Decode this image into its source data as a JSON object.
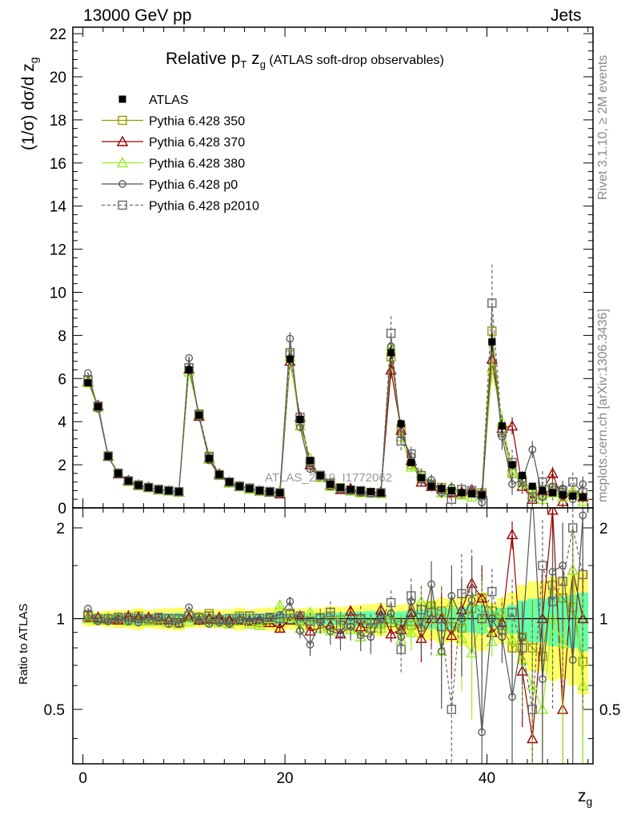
{
  "header": {
    "left": "13000 GeV pp",
    "right": "Jets"
  },
  "side_labels": {
    "rivet": "Rivet 3.1.10, ≥ 2M events",
    "mcplots": "mcplots.cern.ch [arXiv:1306.3436]"
  },
  "watermark": "ATLAS_2019_I1772062",
  "chart_data": [
    {
      "type": "scatter",
      "title": {
        "main": "Relative p",
        "sub": "T",
        "var": " z",
        "var_sub": "g",
        "suffix": " (ATLAS soft-drop observables)"
      },
      "ylabel": "(1/σ) dσ/d z",
      "ylabel_sub": "g",
      "ylim": [
        0,
        22.3
      ],
      "xlim": [
        -1,
        50.5
      ],
      "y_ticks": [
        "0",
        "2",
        "4",
        "6",
        "8",
        "10",
        "12",
        "14",
        "16",
        "18",
        "20",
        "22"
      ],
      "legend_position": "top-left",
      "x": [
        0.5,
        1.5,
        2.5,
        3.5,
        4.5,
        5.5,
        6.5,
        7.5,
        8.5,
        9.5,
        10.5,
        11.5,
        12.5,
        13.5,
        14.5,
        15.5,
        16.5,
        17.5,
        18.5,
        19.5,
        20.5,
        21.5,
        22.5,
        23.5,
        24.5,
        25.5,
        26.5,
        27.5,
        28.5,
        29.5,
        30.5,
        31.5,
        32.5,
        33.5,
        34.5,
        35.5,
        36.5,
        37.5,
        38.5,
        39.5,
        40.5,
        41.5,
        42.5,
        43.5,
        44.5,
        45.5,
        46.5,
        47.5,
        48.5,
        49.5
      ],
      "series": [
        {
          "name": "ATLAS",
          "color": "#000000",
          "marker": "filled-square",
          "values": [
            5.8,
            4.7,
            2.4,
            1.6,
            1.25,
            1.05,
            0.95,
            0.85,
            0.8,
            0.75,
            6.4,
            4.3,
            2.3,
            1.55,
            1.2,
            1.0,
            0.9,
            0.8,
            0.75,
            0.7,
            6.9,
            4.1,
            2.2,
            1.5,
            1.1,
            0.95,
            0.85,
            0.8,
            0.75,
            0.7,
            7.2,
            3.9,
            2.1,
            1.4,
            1.0,
            0.9,
            0.8,
            0.7,
            0.65,
            0.6,
            7.7,
            3.8,
            2.0,
            1.5,
            1.0,
            0.8,
            0.7,
            0.6,
            0.55,
            0.5
          ],
          "errors": [
            0.15,
            0.12,
            0.07,
            0.05,
            0.04,
            0.04,
            0.03,
            0.03,
            0.03,
            0.03,
            0.2,
            0.13,
            0.07,
            0.05,
            0.04,
            0.04,
            0.03,
            0.03,
            0.03,
            0.03,
            0.25,
            0.15,
            0.08,
            0.06,
            0.05,
            0.04,
            0.04,
            0.04,
            0.04,
            0.04,
            0.3,
            0.2,
            0.12,
            0.09,
            0.07,
            0.07,
            0.06,
            0.06,
            0.06,
            0.06,
            0.45,
            0.3,
            0.2,
            0.2,
            0.15,
            0.12,
            0.12,
            0.1,
            0.1,
            0.1
          ]
        },
        {
          "name": "Pythia 6.428 350",
          "color": "#999900",
          "marker": "open-square",
          "style": "solid",
          "values": [
            5.9,
            4.7,
            2.38,
            1.6,
            1.24,
            1.07,
            0.94,
            0.85,
            0.8,
            0.74,
            6.5,
            4.3,
            2.4,
            1.54,
            1.18,
            1.02,
            0.9,
            0.78,
            0.74,
            0.68,
            7.1,
            4.0,
            2.1,
            1.52,
            1.12,
            0.94,
            0.82,
            0.79,
            0.72,
            0.67,
            7.0,
            3.7,
            2.0,
            1.35,
            1.1,
            0.95,
            0.75,
            0.65,
            0.7,
            0.7,
            8.2,
            3.6,
            1.6,
            1.3,
            0.8,
            0.6,
            0.9,
            0.7,
            0.6,
            0.5
          ],
          "errors": [
            0.05,
            0.05,
            0.04,
            0.03,
            0.03,
            0.03,
            0.02,
            0.02,
            0.02,
            0.02,
            0.08,
            0.06,
            0.04,
            0.03,
            0.03,
            0.03,
            0.02,
            0.02,
            0.02,
            0.02,
            0.1,
            0.08,
            0.06,
            0.05,
            0.05,
            0.04,
            0.04,
            0.04,
            0.04,
            0.04,
            0.4,
            0.3,
            0.25,
            0.2,
            0.2,
            0.2,
            0.2,
            0.2,
            0.2,
            0.2,
            0.7,
            0.5,
            0.4,
            0.35,
            0.35,
            0.35,
            0.3,
            0.3,
            0.3,
            0.3
          ]
        },
        {
          "name": "Pythia 6.428 370",
          "color": "#990000",
          "marker": "open-triangle",
          "style": "solid",
          "values": [
            5.85,
            4.75,
            2.4,
            1.58,
            1.27,
            1.06,
            0.96,
            0.84,
            0.79,
            0.73,
            6.45,
            4.25,
            2.3,
            1.57,
            1.19,
            0.99,
            0.88,
            0.79,
            0.73,
            0.65,
            6.8,
            4.2,
            2.0,
            1.4,
            1.05,
            0.85,
            0.9,
            0.75,
            0.7,
            0.75,
            6.4,
            3.6,
            2.2,
            1.2,
            1.0,
            0.9,
            0.7,
            0.75,
            0.85,
            0.7,
            6.9,
            3.7,
            3.8,
            1.0,
            0.4,
            0.8,
            1.6,
            0.3,
            0.8,
            0.5
          ],
          "errors": [
            0.05,
            0.05,
            0.04,
            0.03,
            0.03,
            0.03,
            0.02,
            0.02,
            0.02,
            0.02,
            0.08,
            0.06,
            0.04,
            0.03,
            0.03,
            0.03,
            0.02,
            0.02,
            0.02,
            0.02,
            0.1,
            0.08,
            0.06,
            0.05,
            0.05,
            0.04,
            0.04,
            0.04,
            0.04,
            0.04,
            0.4,
            0.3,
            0.25,
            0.2,
            0.2,
            0.2,
            0.2,
            0.2,
            0.2,
            0.2,
            0.7,
            0.5,
            0.4,
            0.35,
            0.35,
            0.35,
            0.3,
            0.3,
            0.3,
            0.3
          ]
        },
        {
          "name": "Pythia 6.428 380",
          "color": "#99ee22",
          "marker": "open-triangle",
          "style": "solid",
          "values": [
            5.8,
            4.65,
            2.42,
            1.62,
            1.22,
            1.03,
            0.93,
            0.83,
            0.78,
            0.72,
            6.3,
            4.35,
            2.25,
            1.5,
            1.15,
            0.98,
            0.86,
            0.76,
            0.75,
            0.78,
            7.0,
            3.8,
            2.3,
            1.4,
            1.0,
            0.9,
            0.78,
            0.7,
            0.7,
            0.65,
            7.5,
            3.3,
            1.9,
            1.6,
            1.1,
            0.7,
            0.9,
            0.6,
            0.5,
            0.6,
            6.5,
            4.0,
            1.7,
            1.1,
            0.6,
            0.4,
            0.7,
            0.5,
            0.8,
            0.3
          ],
          "errors": [
            0.05,
            0.05,
            0.04,
            0.03,
            0.03,
            0.03,
            0.02,
            0.02,
            0.02,
            0.02,
            0.08,
            0.06,
            0.04,
            0.03,
            0.03,
            0.03,
            0.02,
            0.02,
            0.02,
            0.02,
            0.1,
            0.08,
            0.06,
            0.05,
            0.05,
            0.04,
            0.04,
            0.04,
            0.04,
            0.04,
            0.4,
            0.3,
            0.25,
            0.2,
            0.2,
            0.2,
            0.2,
            0.2,
            0.2,
            0.2,
            0.7,
            0.5,
            0.4,
            0.35,
            0.35,
            0.35,
            0.3,
            0.3,
            0.3,
            0.3
          ]
        },
        {
          "name": "Pythia 6.428 p0",
          "color": "#555555",
          "marker": "open-circle",
          "style": "solid",
          "values": [
            6.25,
            4.6,
            2.35,
            1.6,
            1.23,
            1.02,
            0.96,
            0.86,
            0.77,
            0.72,
            6.95,
            4.2,
            2.2,
            1.5,
            1.15,
            0.99,
            0.88,
            0.79,
            0.76,
            0.72,
            7.85,
            3.75,
            1.8,
            1.45,
            1.0,
            0.85,
            0.8,
            0.7,
            0.65,
            0.7,
            7.5,
            3.4,
            2.4,
            1.3,
            1.3,
            0.7,
            0.95,
            0.7,
            0.75,
            0.25,
            7.7,
            3.3,
            1.1,
            1.3,
            2.7,
            0.5,
            1.0,
            0.9,
            0.4,
            1.1
          ],
          "errors": [
            0.05,
            0.05,
            0.04,
            0.03,
            0.03,
            0.03,
            0.02,
            0.02,
            0.02,
            0.02,
            0.08,
            0.06,
            0.04,
            0.03,
            0.03,
            0.03,
            0.02,
            0.02,
            0.02,
            0.02,
            0.3,
            0.2,
            0.15,
            0.12,
            0.1,
            0.1,
            0.08,
            0.08,
            0.08,
            0.08,
            0.5,
            0.4,
            0.3,
            0.25,
            0.25,
            0.25,
            0.25,
            0.25,
            0.25,
            0.25,
            0.8,
            0.6,
            0.5,
            0.4,
            0.4,
            0.4,
            0.35,
            0.35,
            0.35,
            0.35
          ]
        },
        {
          "name": "Pythia 6.428 p2010",
          "color": "#666666",
          "marker": "open-square",
          "style": "dashed",
          "values": [
            5.95,
            4.72,
            2.41,
            1.61,
            1.26,
            1.05,
            0.95,
            0.86,
            0.8,
            0.75,
            6.5,
            4.35,
            2.35,
            1.53,
            1.2,
            1.0,
            0.92,
            0.8,
            0.76,
            0.7,
            7.2,
            4.2,
            2.15,
            1.5,
            1.15,
            0.9,
            0.82,
            0.8,
            0.7,
            0.7,
            8.1,
            3.1,
            2.5,
            1.5,
            1.05,
            0.85,
            0.4,
            0.85,
            0.8,
            0.6,
            9.5,
            3.5,
            2.1,
            1.2,
            0.5,
            1.2,
            0.8,
            0.8,
            1.2,
            0.7
          ],
          "errors": [
            0.05,
            0.05,
            0.04,
            0.03,
            0.03,
            0.03,
            0.02,
            0.02,
            0.02,
            0.02,
            0.08,
            0.06,
            0.04,
            0.03,
            0.03,
            0.03,
            0.02,
            0.02,
            0.02,
            0.02,
            0.3,
            0.2,
            0.15,
            0.12,
            0.1,
            0.1,
            0.08,
            0.08,
            0.08,
            0.08,
            0.8,
            0.5,
            0.35,
            0.3,
            0.3,
            0.3,
            0.3,
            0.3,
            0.3,
            0.3,
            1.8,
            0.8,
            0.6,
            0.5,
            0.5,
            0.5,
            0.45,
            0.45,
            0.45,
            0.45
          ]
        }
      ]
    },
    {
      "type": "scatter",
      "ylabel": "Ratio to ATLAS",
      "xlabel": "z",
      "xlabel_sub": "g",
      "xlim": [
        -1,
        50.5
      ],
      "ylim": [
        0.33,
        2.33
      ],
      "x_ticks": [
        "0",
        "20",
        "40"
      ],
      "y_ticks": [
        "0.5",
        "1",
        "2"
      ],
      "reference_line": 1,
      "band_colors": {
        "outer": "#ffff66",
        "inner": "#66ffaa"
      },
      "ratio_series": {
        "Pythia 6.428 350": [
          1.02,
          1.0,
          0.99,
          1.0,
          0.99,
          1.02,
          0.99,
          1.0,
          1.0,
          0.99,
          1.02,
          1.0,
          1.04,
          0.99,
          0.98,
          1.02,
          1.0,
          0.97,
          0.99,
          0.97,
          1.03,
          0.98,
          0.95,
          1.01,
          1.02,
          0.99,
          0.96,
          0.99,
          0.96,
          0.96,
          0.97,
          0.95,
          0.95,
          0.96,
          1.1,
          1.06,
          0.94,
          0.93,
          1.08,
          1.17,
          1.06,
          0.95,
          0.8,
          0.87,
          0.8,
          0.75,
          1.29,
          1.17,
          1.09,
          0.72
        ],
        "Pythia 6.428 370": [
          1.01,
          1.01,
          1.0,
          0.99,
          1.02,
          1.01,
          1.01,
          0.99,
          0.99,
          0.97,
          1.01,
          0.99,
          1.0,
          1.01,
          0.99,
          0.99,
          0.98,
          0.99,
          0.97,
          0.93,
          0.99,
          1.02,
          0.91,
          0.93,
          0.95,
          0.89,
          1.06,
          0.94,
          0.93,
          1.07,
          0.89,
          0.92,
          1.05,
          0.86,
          1.0,
          1.0,
          0.88,
          1.07,
          1.31,
          1.17,
          0.9,
          0.97,
          1.9,
          0.67,
          0.4,
          1.0,
          2.29,
          0.5,
          1.45,
          1.0
        ],
        "Pythia 6.428 380": [
          1.0,
          0.99,
          1.01,
          1.01,
          0.98,
          0.98,
          0.98,
          0.98,
          0.97,
          0.96,
          0.98,
          1.01,
          0.98,
          0.97,
          0.96,
          0.98,
          0.96,
          0.95,
          1.0,
          1.11,
          1.01,
          0.93,
          1.05,
          0.93,
          0.91,
          0.95,
          0.92,
          0.87,
          0.93,
          0.93,
          1.04,
          0.85,
          0.9,
          1.14,
          1.1,
          0.78,
          1.13,
          0.86,
          0.77,
          1.0,
          0.84,
          1.05,
          0.85,
          0.73,
          0.6,
          0.5,
          1.0,
          0.83,
          1.45,
          0.6
        ],
        "Pythia 6.428 p0": [
          1.08,
          0.98,
          0.98,
          1.0,
          0.98,
          0.97,
          1.01,
          1.01,
          0.96,
          0.96,
          1.09,
          0.98,
          0.96,
          0.97,
          0.96,
          0.99,
          0.98,
          0.99,
          1.01,
          1.03,
          1.14,
          0.91,
          0.82,
          0.97,
          0.91,
          0.89,
          0.94,
          0.88,
          0.87,
          1.0,
          1.04,
          0.87,
          1.14,
          0.93,
          1.3,
          0.78,
          1.19,
          1.0,
          1.15,
          0.42,
          1.0,
          0.87,
          0.55,
          0.87,
          2.7,
          0.63,
          1.43,
          1.5,
          0.73,
          2.2
        ],
        "Pythia 6.428 p2010": [
          1.03,
          1.0,
          1.0,
          1.01,
          1.01,
          1.0,
          1.0,
          1.01,
          1.0,
          1.0,
          1.02,
          1.01,
          1.02,
          0.99,
          1.0,
          1.0,
          1.02,
          1.0,
          1.01,
          1.0,
          1.04,
          1.02,
          0.98,
          1.0,
          1.05,
          0.95,
          0.96,
          1.0,
          0.93,
          1.0,
          1.13,
          0.79,
          1.19,
          1.07,
          1.05,
          0.94,
          0.5,
          1.21,
          1.23,
          1.0,
          1.23,
          0.92,
          1.05,
          0.8,
          0.5,
          1.5,
          1.14,
          1.33,
          2.0,
          1.4
        ]
      }
    }
  ]
}
